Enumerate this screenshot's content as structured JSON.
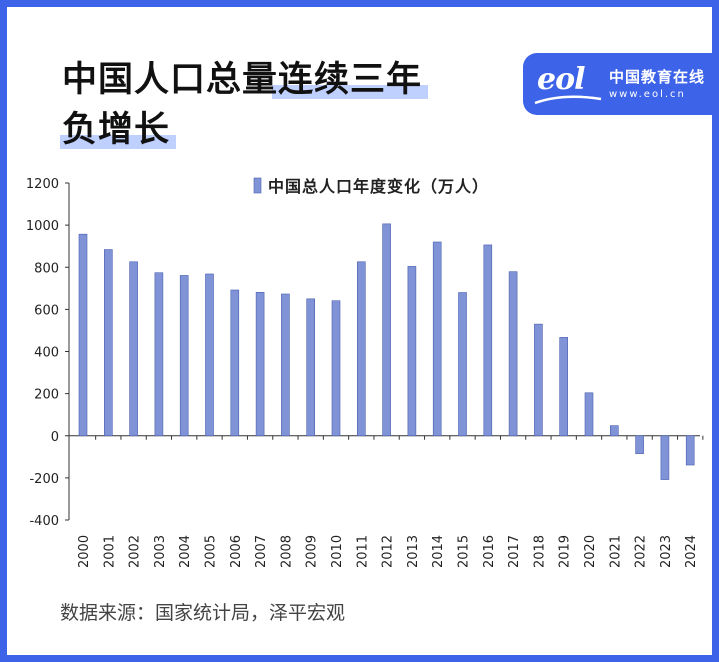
{
  "header": {
    "title_line1": "中国人口总量连续三年",
    "title_line2": "负增长"
  },
  "logo": {
    "mark": "eol",
    "name": "中国教育在线",
    "url": "www.eol.cn",
    "bg_color": "#3d63e8"
  },
  "chart_data": {
    "type": "bar",
    "legend": "中国总人口年度变化（万人）",
    "legend_position": "top-center",
    "categories": [
      "2000",
      "2001",
      "2002",
      "2003",
      "2004",
      "2005",
      "2006",
      "2007",
      "2008",
      "2009",
      "2010",
      "2011",
      "2012",
      "2013",
      "2014",
      "2015",
      "2016",
      "2017",
      "2018",
      "2019",
      "2020",
      "2021",
      "2022",
      "2023",
      "2024"
    ],
    "values": [
      957,
      884,
      826,
      774,
      761,
      768,
      692,
      681,
      673,
      650,
      641,
      826,
      1006,
      804,
      920,
      680,
      906,
      779,
      530,
      467,
      204,
      48,
      -85,
      -208,
      -139
    ],
    "ylim": [
      -400,
      1200
    ],
    "yticks": [
      "1200",
      "1000",
      "800",
      "600",
      "400",
      "200",
      "0",
      "-200",
      "-400"
    ],
    "grid": false,
    "bar_color": "#7f93d6"
  },
  "source": "数据来源：国家统计局，泽平宏观"
}
